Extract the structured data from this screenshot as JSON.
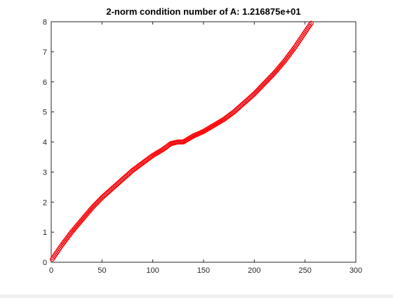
{
  "chart_data": {
    "type": "scatter",
    "title": "2-norm condition number of A: 1.216875e+01",
    "xlabel": "",
    "ylabel": "",
    "xlim": [
      0,
      300
    ],
    "ylim": [
      0,
      8
    ],
    "xticks": [
      0,
      50,
      100,
      150,
      200,
      250,
      300
    ],
    "yticks": [
      0,
      1,
      2,
      3,
      4,
      5,
      6,
      7,
      8
    ],
    "grid": false,
    "legend": "none",
    "series": [
      {
        "marker_color": "#ff0000",
        "line_color": "#4a6fd4",
        "n_points": 256,
        "x_start": 1,
        "x_end": 256,
        "x": [
          1,
          5,
          10,
          20,
          30,
          40,
          50,
          60,
          70,
          80,
          90,
          100,
          110,
          118,
          125,
          130,
          135,
          140,
          150,
          160,
          170,
          180,
          190,
          200,
          210,
          220,
          230,
          240,
          250,
          256
        ],
        "values": [
          0.1,
          0.3,
          0.55,
          1.0,
          1.4,
          1.8,
          2.15,
          2.45,
          2.75,
          3.05,
          3.3,
          3.55,
          3.75,
          3.95,
          4.0,
          4.0,
          4.1,
          4.2,
          4.35,
          4.55,
          4.75,
          5.0,
          5.3,
          5.6,
          5.95,
          6.3,
          6.7,
          7.15,
          7.65,
          7.95
        ]
      }
    ]
  }
}
